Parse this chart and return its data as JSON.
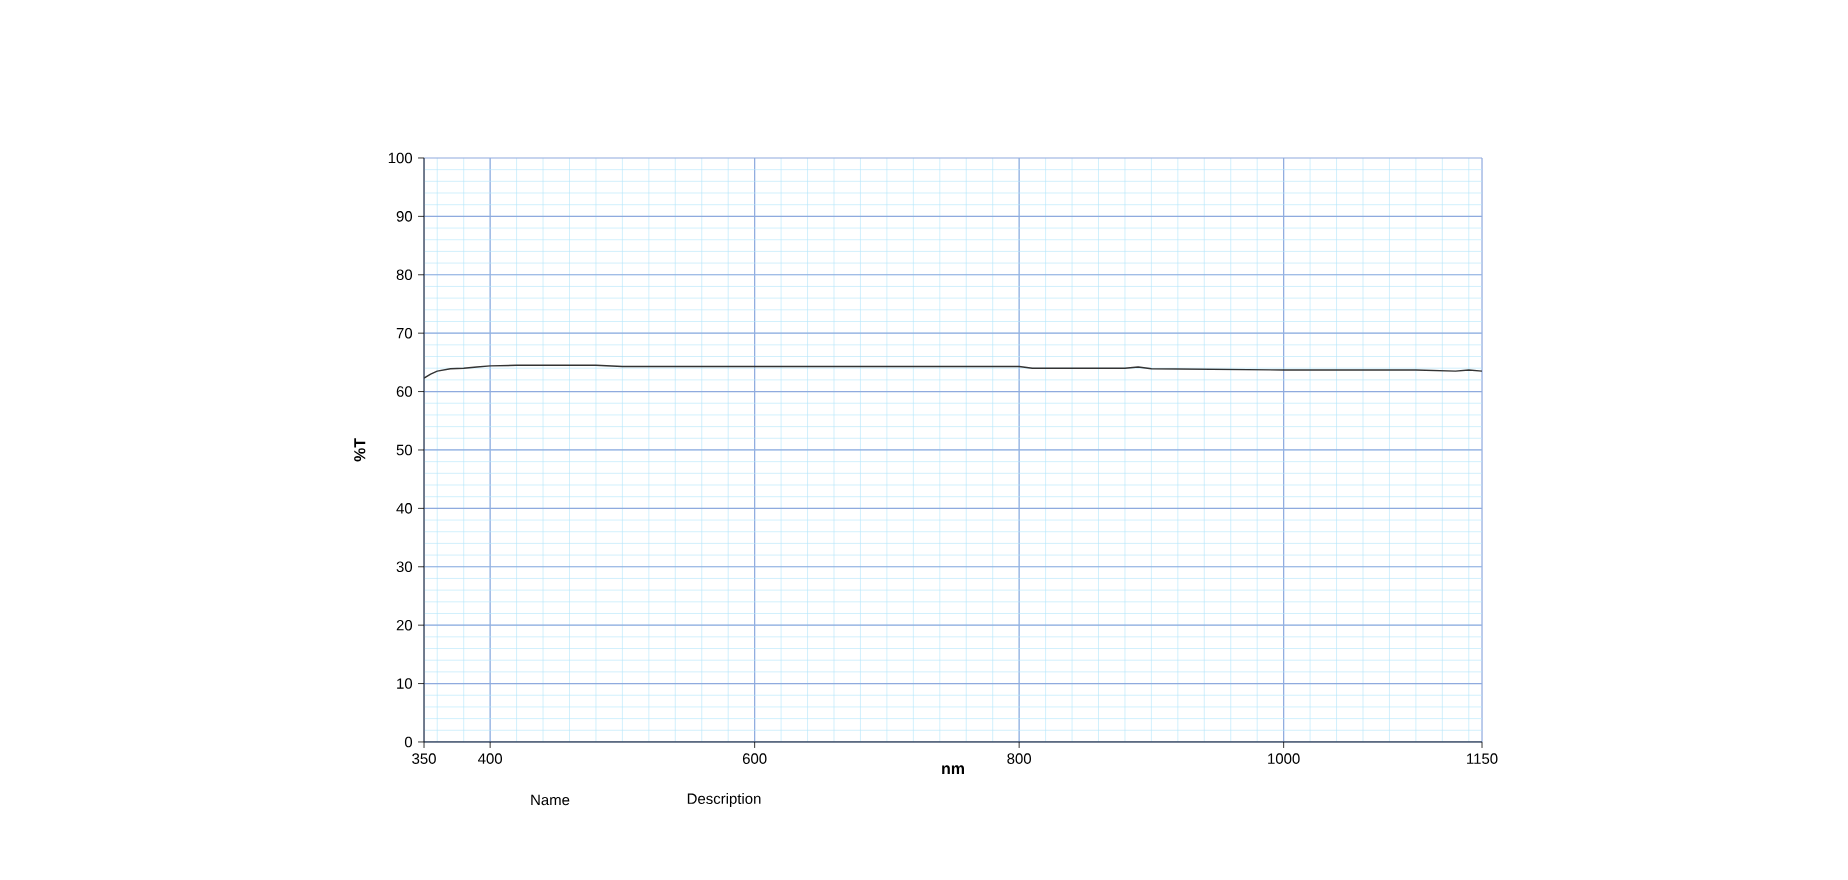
{
  "chart_data": {
    "type": "line",
    "xlabel": "nm",
    "ylabel": "%T",
    "xlim": [
      350,
      1150
    ],
    "xticks": [
      350,
      400,
      600,
      800,
      1000,
      1150
    ],
    "ylim": [
      0,
      100
    ],
    "yticks": [
      0,
      10,
      20,
      30,
      40,
      50,
      60,
      70,
      80,
      90,
      100
    ],
    "grid": true,
    "marker": "none",
    "line_style": "solid",
    "annotations": [
      "Name",
      "Description"
    ],
    "series": [
      {
        "color": "#333333",
        "x": [
          350,
          355,
          360,
          370,
          380,
          390,
          400,
          420,
          440,
          460,
          480,
          500,
          550,
          600,
          650,
          700,
          750,
          800,
          810,
          850,
          880,
          890,
          900,
          950,
          1000,
          1050,
          1100,
          1130,
          1140,
          1150
        ],
        "values": [
          62.3,
          63.0,
          63.5,
          63.9,
          64.0,
          64.2,
          64.4,
          64.5,
          64.5,
          64.5,
          64.5,
          64.3,
          64.3,
          64.3,
          64.3,
          64.3,
          64.3,
          64.3,
          64.0,
          64.0,
          64.0,
          64.2,
          63.9,
          63.8,
          63.7,
          63.7,
          63.7,
          63.5,
          63.7,
          63.5
        ]
      }
    ]
  }
}
